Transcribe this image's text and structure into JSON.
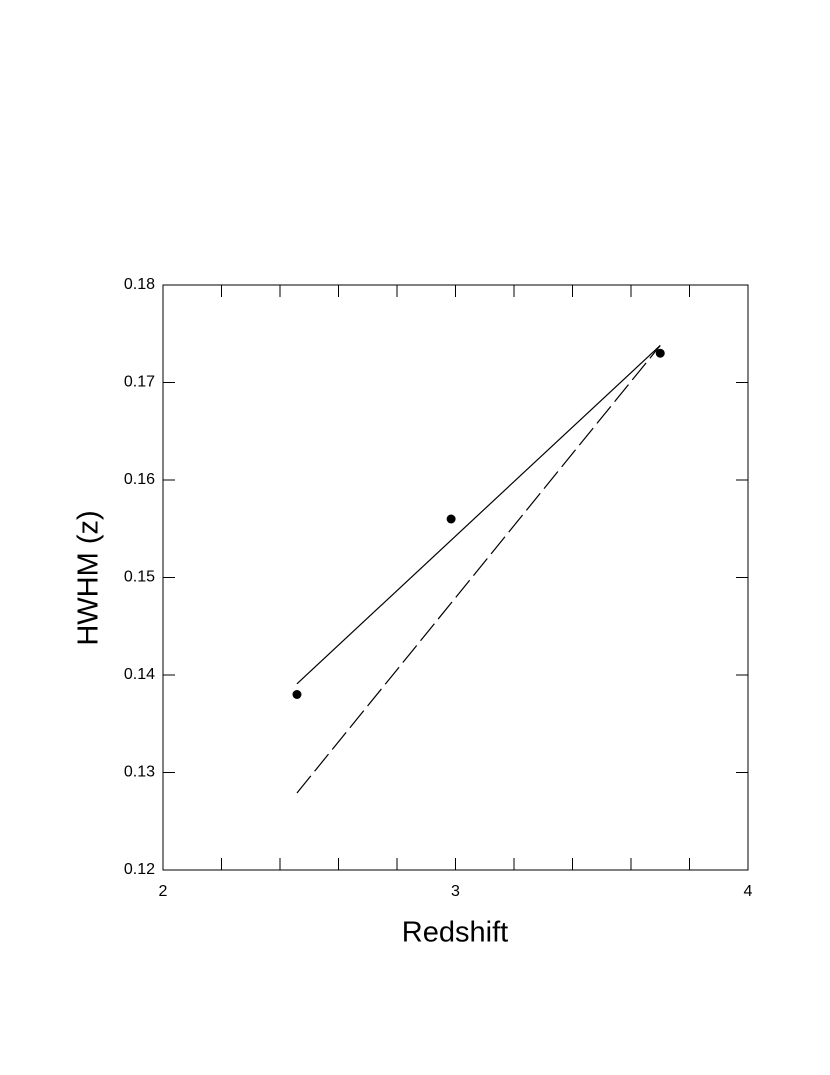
{
  "chart_data": {
    "type": "scatter",
    "x_label": "Redshift",
    "y_label": "HWHM (z)",
    "xlim": [
      2,
      4
    ],
    "xticks": [
      2,
      3,
      4
    ],
    "xminorticks": [
      2.2,
      2.4,
      2.6,
      2.8,
      3.2,
      3.4,
      3.6,
      3.8
    ],
    "ylim": [
      0.12,
      0.18
    ],
    "yticks": [
      0.12,
      0.13,
      0.14,
      0.15,
      0.16,
      0.17,
      0.18
    ],
    "grid": false,
    "series": [
      {
        "type": "scatter",
        "color": "#000000",
        "x": [
          2.458,
          2.985,
          3.7
        ],
        "values": [
          0.138,
          0.156,
          0.173
        ]
      },
      {
        "type": "line",
        "color": "#000000",
        "dashed": false,
        "x": [
          2.458,
          3.7
        ],
        "values": [
          0.1391,
          0.1738
        ]
      },
      {
        "type": "line",
        "color": "#000000",
        "dashed": true,
        "x": [
          2.458,
          3.7
        ],
        "values": [
          0.1279,
          0.1738
        ]
      }
    ]
  }
}
